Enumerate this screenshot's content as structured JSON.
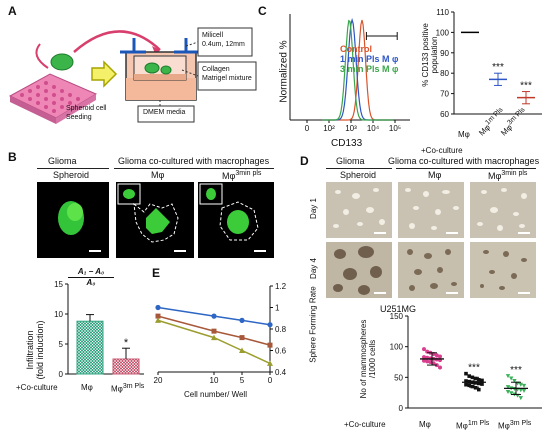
{
  "panels": {
    "a": "A",
    "b": "B",
    "c": "C",
    "d": "D",
    "e": "E"
  },
  "panel_a": {
    "seeding_label": "Spheroid cell\nSeeding",
    "insert_label": "Milicell\n0.4um, 12mm",
    "gel_label": "Collagen\nMatrigel mixture",
    "media_label": "DMEM media"
  },
  "panel_b": {
    "header_glioma": "Glioma",
    "header_cocultured": "Glioma co-cultured with macrophages",
    "sub_spheroid": "Spheroid",
    "sub_mphi": "Mφ",
    "sub_mphi3": "Mφ",
    "sub_mphi3_sup": "3min pls",
    "ylabel": "Infiltration\n(fold induction)",
    "formula_num": "A₁ − A₀",
    "formula_den": "A₀",
    "coculture_label": "+Co-culture",
    "cat1": "Mφ",
    "cat2": "Mφ",
    "cat2_sup": "3m Pls",
    "sig": "*"
  },
  "panel_c": {
    "ylabel": "Normalized %",
    "xlabel": "CD133",
    "legend": [
      {
        "label": "Control",
        "color": "#d9542c"
      },
      {
        "label": "1 min Pls M φ",
        "color": "#2d55c8"
      },
      {
        "label": "3 min Pls M φ",
        "color": "#3aa64a"
      }
    ],
    "scatter_ylabel": "% CD133 positive\npopulation",
    "coculture_label": "+Co-culture",
    "cats": [
      "Mφ",
      "Mφ",
      "Mφ"
    ],
    "cat_sups": [
      "",
      "1m Pls",
      "3m Pls"
    ],
    "sig": [
      "***",
      "***"
    ]
  },
  "panel_d": {
    "header_glioma": "Glioma",
    "header_cocultured": "Glioma co-cultured with macrophages",
    "sub_spheroid": "Spheroid",
    "sub_mphi": "Mφ",
    "sub_mphi3": "Mφ",
    "sub_mphi3_sup": "3min pls",
    "row1": "Day 1",
    "row4": "Day 4",
    "cellline": "U251MG",
    "ylabel": "No of mammospheres\n/1000 cells",
    "coculture_label": "+Co-culture",
    "cats": [
      "Mφ",
      "Mφ",
      "Mφ"
    ],
    "cat_sups": [
      "",
      "1m Pls",
      "3m Pls"
    ],
    "sig": [
      "***",
      "***"
    ]
  },
  "panel_e": {
    "xlabel": "Cell number/ Well",
    "ylabel": "Sphere Forming Rate"
  },
  "chart_data": [
    {
      "id": "b-bar",
      "type": "bar",
      "categories": [
        "Mφ",
        "Mφ3m Pls"
      ],
      "values": [
        8.8,
        2.5
      ],
      "errors": [
        1.1,
        1.8
      ],
      "ylim": [
        0,
        15
      ],
      "yticks": [
        0,
        5,
        10,
        15
      ],
      "colors": [
        "#36a583",
        "#c65a72"
      ]
    },
    {
      "id": "c-scatter",
      "type": "scatter",
      "categories": [
        "Mφ",
        "Mφ1m Pls",
        "Mφ3m Pls"
      ],
      "means": [
        100,
        77,
        68
      ],
      "errors": [
        0,
        3,
        3
      ],
      "ylim": [
        60,
        110
      ],
      "yticks": [
        60,
        70,
        80,
        90,
        100,
        110
      ],
      "colors": [
        "#000000",
        "#2d55c8",
        "#c0392b"
      ]
    },
    {
      "id": "c-histogram",
      "type": "line",
      "xlabel": "CD133",
      "ylabel": "Normalized %",
      "xticks": [
        "0",
        "10²",
        "10³",
        "10⁴",
        "10⁵"
      ],
      "series": [
        {
          "name": "Control",
          "color": "#d9542c",
          "peak": 3.0,
          "width": 0.16
        },
        {
          "name": "1 min Pls M φ",
          "color": "#2d55c8",
          "peak": 2.55,
          "width": 0.18
        },
        {
          "name": "3 min Pls M φ",
          "color": "#3aa64a",
          "peak": 2.42,
          "width": 0.17
        }
      ]
    },
    {
      "id": "d-scatter",
      "type": "scatter",
      "categories": [
        "Mφ",
        "Mφ1m Pls",
        "Mφ3m Pls"
      ],
      "means": [
        80,
        42,
        32
      ],
      "errors": [
        10,
        8,
        10
      ],
      "ylim": [
        0,
        150
      ],
      "yticks": [
        0,
        50,
        100,
        150
      ],
      "colors": [
        "#d83f8e",
        "#111111",
        "#3ab15a"
      ],
      "points": [
        [
          96,
          92,
          90,
          88,
          86,
          84,
          83,
          82,
          81,
          80,
          79,
          78,
          77,
          76,
          75,
          73,
          70,
          66
        ],
        [
          56,
          52,
          50,
          48,
          46,
          45,
          44,
          43,
          42,
          41,
          40,
          39,
          38,
          37,
          35,
          33,
          30
        ],
        [
          52,
          48,
          44,
          40,
          38,
          36,
          34,
          32,
          31,
          30,
          29,
          28,
          26,
          24,
          22,
          20,
          16
        ]
      ]
    },
    {
      "id": "e-line",
      "type": "line",
      "xlabel": "Cell number/ Well",
      "ylabel": "Sphere Forming Rate",
      "x": [
        20,
        10,
        5,
        0
      ],
      "xlim": [
        20,
        0
      ],
      "ylim": [
        0.4,
        1.2
      ],
      "yticks": [
        0.4,
        0.6,
        0.8,
        1,
        1.2
      ],
      "series": [
        {
          "color": "#2d66c4",
          "marker": "circle",
          "values": [
            1.0,
            0.92,
            0.88,
            0.84
          ]
        },
        {
          "color": "#a8583a",
          "marker": "square",
          "values": [
            0.92,
            0.78,
            0.72,
            0.65
          ]
        },
        {
          "color": "#9b9d2e",
          "marker": "triangle",
          "values": [
            0.88,
            0.72,
            0.6,
            0.48
          ]
        }
      ]
    }
  ]
}
